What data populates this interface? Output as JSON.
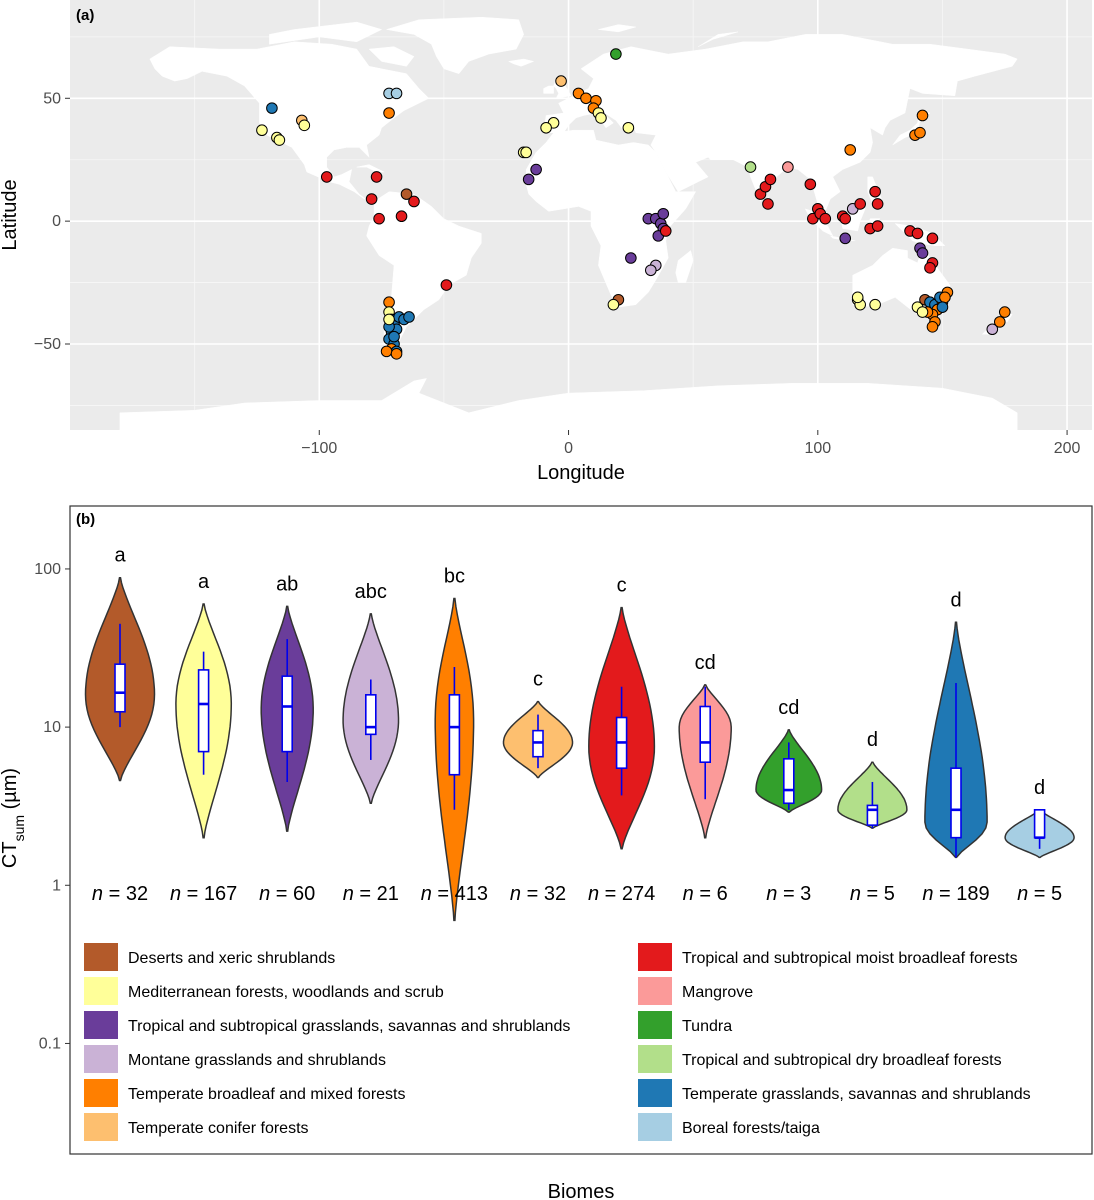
{
  "chart_data": [
    {
      "type": "scatter",
      "panel_label": "(a)",
      "xlabel": "Longitude",
      "ylabel": "Latitude",
      "xlim": [
        -200,
        210
      ],
      "ylim": [
        -85,
        90
      ],
      "xticks": [
        -100,
        0,
        100,
        200
      ],
      "xtick_labels": [
        "−100",
        "0",
        "100",
        "200"
      ],
      "yticks": [
        -50,
        0,
        50
      ],
      "ytick_labels": [
        "−50",
        "0",
        "50"
      ],
      "points": [
        {
          "lon": -119,
          "lat": 46,
          "biome": 10
        },
        {
          "lon": -123,
          "lat": 37,
          "biome": 1
        },
        {
          "lon": -117,
          "lat": 34,
          "biome": 1
        },
        {
          "lon": -116,
          "lat": 33,
          "biome": 1
        },
        {
          "lon": -107,
          "lat": 41,
          "biome": 5
        },
        {
          "lon": -106,
          "lat": 39,
          "biome": 1
        },
        {
          "lon": -72,
          "lat": 52,
          "biome": 11
        },
        {
          "lon": -69,
          "lat": 52,
          "biome": 11
        },
        {
          "lon": -72,
          "lat": 44,
          "biome": 4
        },
        {
          "lon": -97,
          "lat": 18,
          "biome": 6
        },
        {
          "lon": -77,
          "lat": 18,
          "biome": 6
        },
        {
          "lon": -79,
          "lat": 9,
          "biome": 6
        },
        {
          "lon": -76,
          "lat": 1,
          "biome": 6
        },
        {
          "lon": -65,
          "lat": 11,
          "biome": 0
        },
        {
          "lon": -62,
          "lat": 8,
          "biome": 6
        },
        {
          "lon": -67,
          "lat": 2,
          "biome": 6
        },
        {
          "lon": -49,
          "lat": -26,
          "biome": 6
        },
        {
          "lon": -72,
          "lat": -33,
          "biome": 4
        },
        {
          "lon": -72,
          "lat": -37,
          "biome": 1
        },
        {
          "lon": -71,
          "lat": -40,
          "biome": 10
        },
        {
          "lon": -70,
          "lat": -42,
          "biome": 10
        },
        {
          "lon": -68,
          "lat": -39,
          "biome": 10
        },
        {
          "lon": -66,
          "lat": -40,
          "biome": 10
        },
        {
          "lon": -64,
          "lat": -39,
          "biome": 10
        },
        {
          "lon": -71,
          "lat": -45,
          "biome": 10
        },
        {
          "lon": -69,
          "lat": -44,
          "biome": 10
        },
        {
          "lon": -72,
          "lat": -48,
          "biome": 10
        },
        {
          "lon": -70,
          "lat": -50,
          "biome": 10
        },
        {
          "lon": -71,
          "lat": -52,
          "biome": 4
        },
        {
          "lon": -69,
          "lat": -53,
          "biome": 10
        },
        {
          "lon": -73,
          "lat": -53,
          "biome": 4
        },
        {
          "lon": -69,
          "lat": -54,
          "biome": 4
        },
        {
          "lon": -72,
          "lat": -43,
          "biome": 10
        },
        {
          "lon": -70,
          "lat": -47,
          "biome": 10
        },
        {
          "lon": -72,
          "lat": -40,
          "biome": 1
        },
        {
          "lon": -3,
          "lat": 57,
          "biome": 5
        },
        {
          "lon": 19,
          "lat": 68,
          "biome": 8
        },
        {
          "lon": 4,
          "lat": 52,
          "biome": 4
        },
        {
          "lon": 7,
          "lat": 50,
          "biome": 4
        },
        {
          "lon": 11,
          "lat": 49,
          "biome": 4
        },
        {
          "lon": 10,
          "lat": 46,
          "biome": 4
        },
        {
          "lon": 12,
          "lat": 44,
          "biome": 1
        },
        {
          "lon": 13,
          "lat": 42,
          "biome": 1
        },
        {
          "lon": 24,
          "lat": 38,
          "biome": 1
        },
        {
          "lon": -6,
          "lat": 40,
          "biome": 1
        },
        {
          "lon": -9,
          "lat": 38,
          "biome": 1
        },
        {
          "lon": -18,
          "lat": 28,
          "biome": 1
        },
        {
          "lon": -17,
          "lat": 28,
          "biome": 1
        },
        {
          "lon": -13,
          "lat": 21,
          "biome": 2
        },
        {
          "lon": -16,
          "lat": 17,
          "biome": 2
        },
        {
          "lon": 32,
          "lat": 1,
          "biome": 2
        },
        {
          "lon": 35,
          "lat": 1,
          "biome": 2
        },
        {
          "lon": 37,
          "lat": -1,
          "biome": 2
        },
        {
          "lon": 38,
          "lat": -3,
          "biome": 2
        },
        {
          "lon": 36,
          "lat": -6,
          "biome": 2
        },
        {
          "lon": 38,
          "lat": 3,
          "biome": 2
        },
        {
          "lon": 39,
          "lat": -4,
          "biome": 6
        },
        {
          "lon": 25,
          "lat": -15,
          "biome": 2
        },
        {
          "lon": 35,
          "lat": -18,
          "biome": 3
        },
        {
          "lon": 33,
          "lat": -20,
          "biome": 3
        },
        {
          "lon": 20,
          "lat": -32,
          "biome": 0
        },
        {
          "lon": 18,
          "lat": -34,
          "biome": 1
        },
        {
          "lon": 73,
          "lat": 22,
          "biome": 9
        },
        {
          "lon": 88,
          "lat": 22,
          "biome": 7
        },
        {
          "lon": 77,
          "lat": 11,
          "biome": 6
        },
        {
          "lon": 79,
          "lat": 14,
          "biome": 6
        },
        {
          "lon": 81,
          "lat": 17,
          "biome": 6
        },
        {
          "lon": 80,
          "lat": 7,
          "biome": 6
        },
        {
          "lon": 97,
          "lat": 15,
          "biome": 6
        },
        {
          "lon": 100,
          "lat": 5,
          "biome": 6
        },
        {
          "lon": 98,
          "lat": 1,
          "biome": 6
        },
        {
          "lon": 101,
          "lat": 3,
          "biome": 6
        },
        {
          "lon": 103,
          "lat": 1,
          "biome": 6
        },
        {
          "lon": 110,
          "lat": 2,
          "biome": 6
        },
        {
          "lon": 111,
          "lat": 1,
          "biome": 6
        },
        {
          "lon": 114,
          "lat": 5,
          "biome": 3
        },
        {
          "lon": 117,
          "lat": 7,
          "biome": 6
        },
        {
          "lon": 123,
          "lat": 12,
          "biome": 6
        },
        {
          "lon": 124,
          "lat": 7,
          "biome": 6
        },
        {
          "lon": 121,
          "lat": -3,
          "biome": 6
        },
        {
          "lon": 124,
          "lat": -2,
          "biome": 6
        },
        {
          "lon": 111,
          "lat": -7,
          "biome": 2
        },
        {
          "lon": 113,
          "lat": 29,
          "biome": 4
        },
        {
          "lon": 139,
          "lat": 35,
          "biome": 4
        },
        {
          "lon": 141,
          "lat": 36,
          "biome": 4
        },
        {
          "lon": 142,
          "lat": 43,
          "biome": 4
        },
        {
          "lon": 137,
          "lat": -4,
          "biome": 6
        },
        {
          "lon": 140,
          "lat": -5,
          "biome": 6
        },
        {
          "lon": 146,
          "lat": -7,
          "biome": 6
        },
        {
          "lon": 141,
          "lat": -11,
          "biome": 2
        },
        {
          "lon": 142,
          "lat": -13,
          "biome": 2
        },
        {
          "lon": 146,
          "lat": -17,
          "biome": 6
        },
        {
          "lon": 145,
          "lat": -19,
          "biome": 6
        },
        {
          "lon": 116,
          "lat": -32,
          "biome": 1
        },
        {
          "lon": 117,
          "lat": -34,
          "biome": 1
        },
        {
          "lon": 123,
          "lat": -34,
          "biome": 1
        },
        {
          "lon": 116,
          "lat": -31,
          "biome": 1
        },
        {
          "lon": 140,
          "lat": -35,
          "biome": 1
        },
        {
          "lon": 143,
          "lat": -32,
          "biome": 0
        },
        {
          "lon": 145,
          "lat": -33,
          "biome": 10
        },
        {
          "lon": 147,
          "lat": -34,
          "biome": 10
        },
        {
          "lon": 148,
          "lat": -36,
          "biome": 4
        },
        {
          "lon": 150,
          "lat": -33,
          "biome": 4
        },
        {
          "lon": 152,
          "lat": -29,
          "biome": 4
        },
        {
          "lon": 146,
          "lat": -38,
          "biome": 4
        },
        {
          "lon": 144,
          "lat": -37,
          "biome": 4
        },
        {
          "lon": 147,
          "lat": -41,
          "biome": 4
        },
        {
          "lon": 146,
          "lat": -43,
          "biome": 4
        },
        {
          "lon": 149,
          "lat": -31,
          "biome": 10
        },
        {
          "lon": 151,
          "lat": -31,
          "biome": 4
        },
        {
          "lon": 142,
          "lat": -37,
          "biome": 1
        },
        {
          "lon": 150,
          "lat": -35,
          "biome": 10
        },
        {
          "lon": 170,
          "lat": -44,
          "biome": 3
        },
        {
          "lon": 173,
          "lat": -41,
          "biome": 4
        },
        {
          "lon": 175,
          "lat": -37,
          "biome": 4
        }
      ]
    },
    {
      "type": "violin",
      "panel_label": "(b)",
      "xlabel": "Biomes",
      "ylabel_base": "CT",
      "ylabel_sub": "sum",
      "ylabel_unit": " (µm)",
      "yscale": "log10",
      "ylim": [
        0.02,
        250
      ],
      "yticks": [
        0.1,
        1,
        10,
        100
      ],
      "ytick_labels": [
        "0.1",
        "1",
        "10",
        "100"
      ],
      "n_prefix": "n",
      "series": [
        {
          "biome": "Deserts and xeric shrublands",
          "color": "#b35a2a",
          "letter": "a",
          "n": "32",
          "min": 4.6,
          "max": 88,
          "q1": 12.5,
          "median": 16.5,
          "q3": 25,
          "wlo": 10,
          "whi": 45,
          "mode": 16,
          "w": 1.0
        },
        {
          "biome": "Mediterranean forests, woodlands and scrub",
          "color": "#ffff99",
          "letter": "a",
          "n": "167",
          "min": 2,
          "max": 60,
          "q1": 7,
          "median": 14,
          "q3": 23,
          "wlo": 5,
          "whi": 30,
          "mode": 14,
          "w": 0.8
        },
        {
          "biome": "Tropical and subtropical grasslands, savannas and shrublands",
          "color": "#6a3d9a",
          "letter": "ab",
          "n": "60",
          "min": 2.2,
          "max": 58,
          "q1": 7,
          "median": 13.5,
          "q3": 21,
          "wlo": 4.5,
          "whi": 36,
          "mode": 13,
          "w": 0.75
        },
        {
          "biome": "Montane grasslands and shrublands",
          "color": "#cab2d6",
          "letter": "abc",
          "n": "21",
          "min": 3.3,
          "max": 52,
          "q1": 9,
          "median": 10,
          "q3": 16,
          "wlo": 6.2,
          "whi": 20,
          "mode": 11,
          "w": 0.8
        },
        {
          "biome": "Temperate broadleaf and mixed forests",
          "color": "#ff7f00",
          "letter": "bc",
          "n": "413",
          "min": 0.6,
          "max": 65,
          "q1": 5,
          "median": 10,
          "q3": 16,
          "wlo": 3,
          "whi": 24,
          "mode": 11,
          "w": 0.55
        },
        {
          "biome": "Temperate conifer forests",
          "color": "#fdbf6f",
          "letter": "c",
          "n": "32",
          "min": 4.8,
          "max": 14.5,
          "q1": 6.5,
          "median": 8,
          "q3": 9.5,
          "wlo": 5.5,
          "whi": 12,
          "mode": 8,
          "w": 1.0
        },
        {
          "biome": "Tropical and subtropical moist broadleaf forests",
          "color": "#e31a1c",
          "letter": "c",
          "n": "274",
          "min": 1.7,
          "max": 57,
          "q1": 5.5,
          "median": 8,
          "q3": 11.5,
          "wlo": 3.7,
          "whi": 18,
          "mode": 7.5,
          "w": 0.95
        },
        {
          "biome": "Mangrove",
          "color": "#fb9a99",
          "letter": "cd",
          "n": "6",
          "min": 2,
          "max": 18.5,
          "q1": 6,
          "median": 8,
          "q3": 13.5,
          "wlo": 3.5,
          "whi": 18,
          "mode": 10,
          "w": 0.75
        },
        {
          "biome": "Tundra",
          "color": "#33a02c",
          "letter": "cd",
          "n": "3",
          "min": 2.9,
          "max": 9.6,
          "q1": 3.3,
          "median": 4,
          "q3": 6.3,
          "wlo": 3,
          "whi": 8,
          "mode": 4,
          "w": 0.95
        },
        {
          "biome": "Tropical and subtropical dry broadleaf forests",
          "color": "#b2df8a",
          "letter": "d",
          "n": "5",
          "min": 2.3,
          "max": 6,
          "q1": 2.4,
          "median": 3,
          "q3": 3.2,
          "wlo": 2.3,
          "whi": 4.5,
          "mode": 3,
          "w": 1.0
        },
        {
          "biome": "Temperate grasslands, savannas and shrublands",
          "color": "#1f78b4",
          "letter": "d",
          "n": "189",
          "min": 1.5,
          "max": 46,
          "q1": 2,
          "median": 3,
          "q3": 5.5,
          "wlo": 1.5,
          "whi": 19,
          "mode": 2.5,
          "w": 0.9
        },
        {
          "biome": "Boreal forests/taiga",
          "color": "#a6cee3",
          "letter": "d",
          "n": "5",
          "min": 1.5,
          "max": 3,
          "q1": 2,
          "median": 2,
          "q3": 3,
          "wlo": 1.7,
          "whi": 3,
          "mode": 2,
          "w": 1.0
        }
      ],
      "legend": {
        "left": [
          0,
          1,
          2,
          3,
          4,
          5
        ],
        "right": [
          6,
          7,
          8,
          9,
          10,
          11
        ]
      }
    }
  ]
}
